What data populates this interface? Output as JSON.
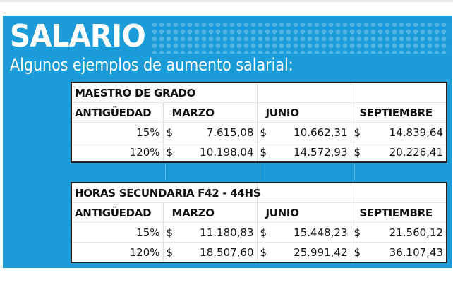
{
  "title": "SALARIO",
  "subtitle": "Algunos ejemplos de aumento salarial:",
  "columns": [
    "ANTIGÜEDAD",
    "MARZO",
    "JUNIO",
    "SEPTIEMBRE"
  ],
  "currency": "$",
  "tables": [
    {
      "name": "MAESTRO DE GRADO",
      "rows": [
        {
          "antiguedad": "15%",
          "values": [
            "7.615,08",
            "10.662,31",
            "14.839,64"
          ]
        },
        {
          "antiguedad": "120%",
          "values": [
            "10.198,04",
            "14.572,93",
            "20.226,41"
          ]
        }
      ]
    },
    {
      "name": "HORAS SECUNDARIA F42 - 44HS",
      "rows": [
        {
          "antiguedad": "15%",
          "values": [
            "11.180,83",
            "15.448,23",
            "21.560,12"
          ]
        },
        {
          "antiguedad": "120%",
          "values": [
            "18.507,60",
            "25.991,42",
            "36.107,43"
          ]
        }
      ]
    }
  ],
  "colors": {
    "panel": "#1b9bd7",
    "text": "#111111"
  }
}
